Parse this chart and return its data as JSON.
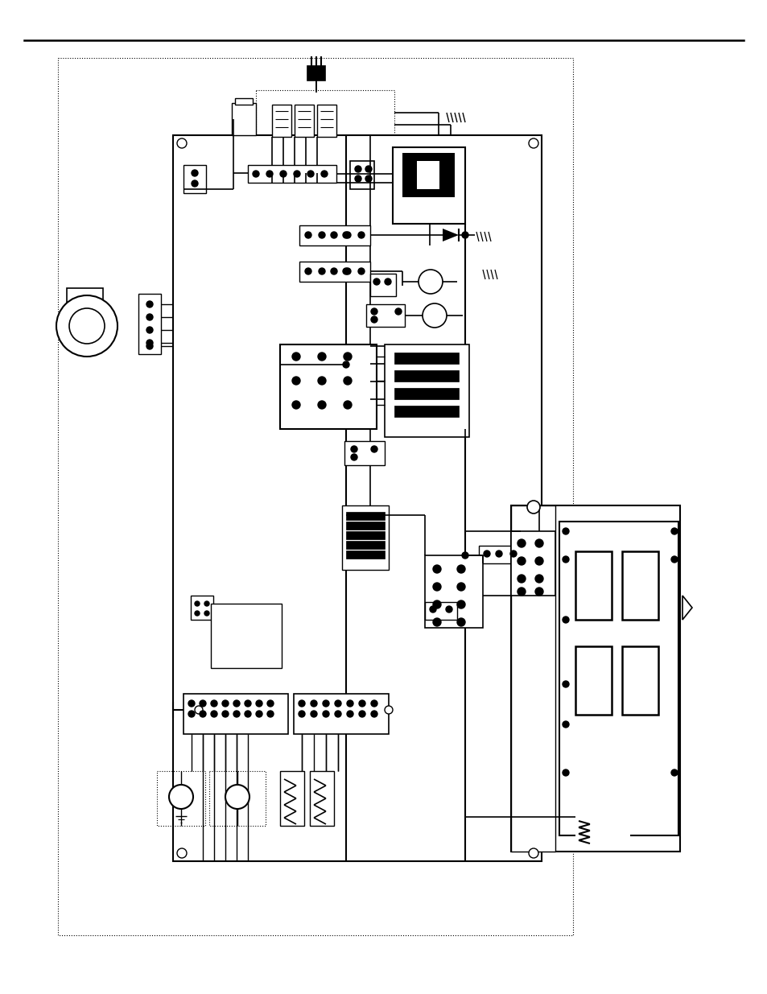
{
  "background_color": "#ffffff",
  "line_color": "#000000",
  "fig_width": 9.54,
  "fig_height": 12.35
}
